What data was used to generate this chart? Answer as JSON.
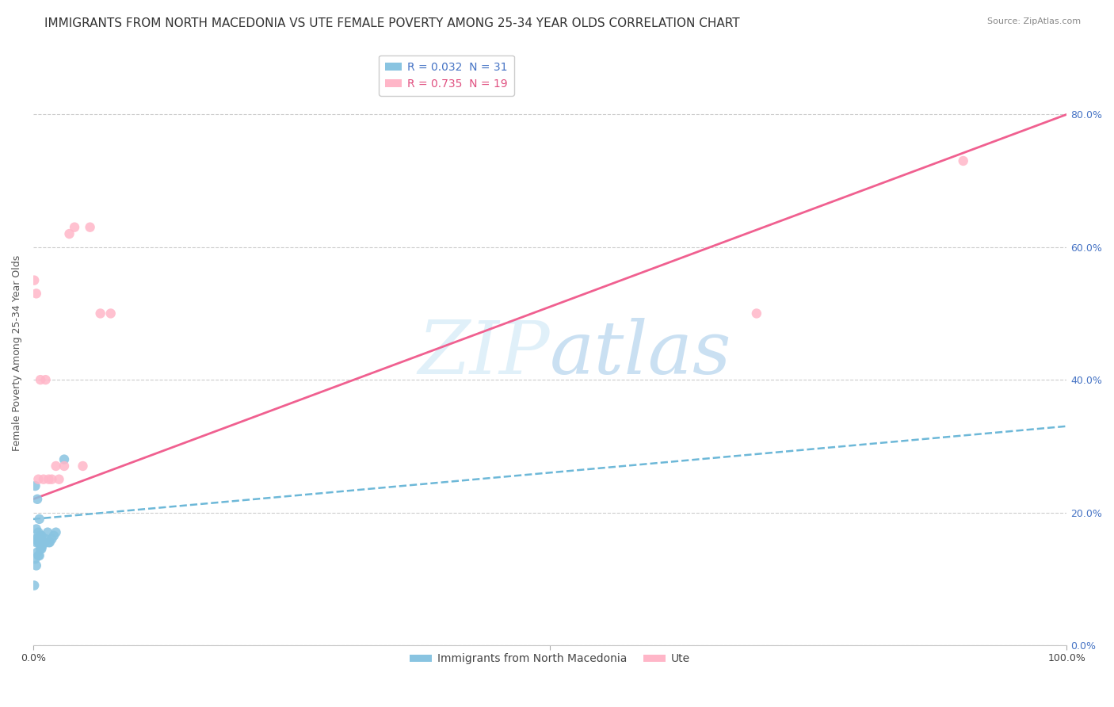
{
  "title": "IMMIGRANTS FROM NORTH MACEDONIA VS UTE FEMALE POVERTY AMONG 25-34 YEAR OLDS CORRELATION CHART",
  "source": "Source: ZipAtlas.com",
  "ylabel": "Female Poverty Among 25-34 Year Olds",
  "ytick_vals": [
    0.0,
    0.2,
    0.4,
    0.6,
    0.8
  ],
  "ytick_labels": [
    "0.0%",
    "20.0%",
    "40.0%",
    "60.0%",
    "80.0%"
  ],
  "xtick_vals": [
    0.0,
    0.5,
    1.0
  ],
  "xtick_labels": [
    "0.0%",
    "",
    "100.0%"
  ],
  "legend_entry1": "R = 0.032  N = 31",
  "legend_entry2": "R = 0.735  N = 19",
  "legend_label1": "Immigrants from North Macedonia",
  "legend_label2": "Ute",
  "color_blue": "#89c4e1",
  "color_pink": "#ffb6c8",
  "color_trendline_blue": "#6db8d8",
  "color_trendline_pink": "#f06090",
  "watermark_zip": "ZIP",
  "watermark_atlas": "atlas",
  "blue_scatter_x": [
    0.001,
    0.002,
    0.002,
    0.002,
    0.003,
    0.003,
    0.003,
    0.004,
    0.004,
    0.004,
    0.005,
    0.005,
    0.005,
    0.006,
    0.006,
    0.006,
    0.007,
    0.007,
    0.008,
    0.008,
    0.009,
    0.01,
    0.011,
    0.012,
    0.014,
    0.015,
    0.016,
    0.018,
    0.02,
    0.022,
    0.03
  ],
  "blue_scatter_y": [
    0.09,
    0.13,
    0.16,
    0.24,
    0.12,
    0.155,
    0.175,
    0.14,
    0.16,
    0.22,
    0.135,
    0.155,
    0.17,
    0.135,
    0.155,
    0.19,
    0.145,
    0.165,
    0.145,
    0.165,
    0.15,
    0.155,
    0.155,
    0.16,
    0.17,
    0.155,
    0.155,
    0.16,
    0.165,
    0.17,
    0.28
  ],
  "pink_scatter_x": [
    0.001,
    0.003,
    0.005,
    0.007,
    0.01,
    0.012,
    0.015,
    0.018,
    0.022,
    0.025,
    0.03,
    0.035,
    0.04,
    0.048,
    0.055,
    0.065,
    0.075,
    0.7,
    0.9
  ],
  "pink_scatter_y": [
    0.55,
    0.53,
    0.25,
    0.4,
    0.25,
    0.4,
    0.25,
    0.25,
    0.27,
    0.25,
    0.27,
    0.62,
    0.63,
    0.27,
    0.63,
    0.5,
    0.5,
    0.5,
    0.73
  ],
  "blue_trend_x": [
    0.0,
    1.0
  ],
  "blue_trend_y": [
    0.19,
    0.33
  ],
  "pink_trend_x": [
    0.0,
    1.0
  ],
  "pink_trend_y": [
    0.22,
    0.8
  ],
  "xlim": [
    0.0,
    1.0
  ],
  "ylim": [
    0.0,
    0.88
  ],
  "background_color": "#ffffff",
  "grid_color": "#cccccc",
  "title_fontsize": 11,
  "axis_label_fontsize": 9,
  "tick_fontsize": 9,
  "legend_fontsize": 10,
  "source_fontsize": 8
}
